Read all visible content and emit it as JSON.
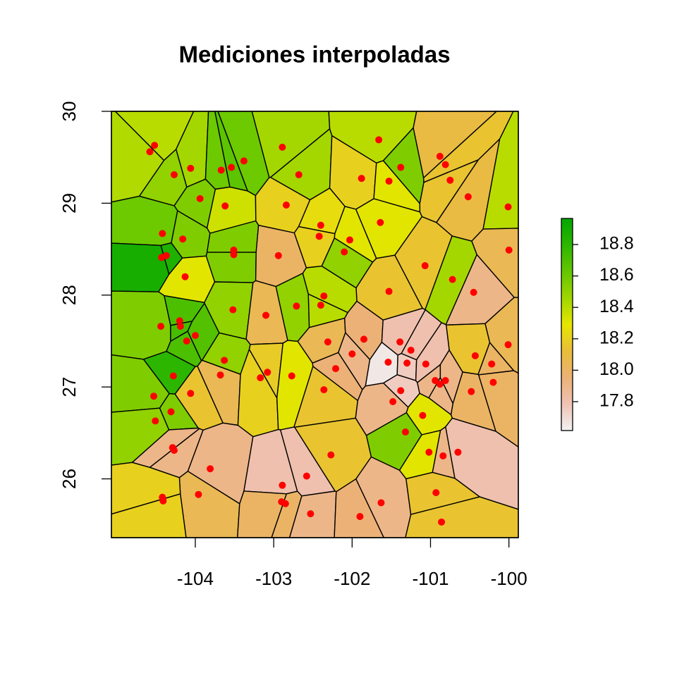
{
  "chart_data": {
    "type": "voronoi",
    "title": "Mediciones interpoladas",
    "xlim": [
      -105.07,
      -99.88
    ],
    "ylim": [
      25.36,
      30
    ],
    "xticks": [
      -104,
      -103,
      -102,
      -101,
      -100
    ],
    "yticks": [
      26,
      27,
      28,
      29,
      30
    ],
    "point_color": "#ff0000",
    "x": [
      -104.52,
      -104.58,
      -104.27,
      -104.06,
      -103.94,
      -103.67,
      -103.54,
      -103.38,
      -102.89,
      -102.68,
      -103.62,
      -102.84,
      -101.88,
      -101.66,
      -101.53,
      -101.38,
      -100.88,
      -100.81,
      -100.75,
      -100.52,
      -100.01,
      -104.42,
      -104.16,
      -104.37,
      -104.43,
      -104.13,
      -103.51,
      -103.51,
      -102.94,
      -102.4,
      -102.42,
      -102.03,
      -102.1,
      -101.64,
      -100.0,
      -101.07,
      -100.72,
      -101.53,
      -102.36,
      -102.4,
      -102.71,
      -103.52,
      -103.1,
      -104.44,
      -104.2,
      -104.19,
      -104.11,
      -104.0,
      -103.63,
      -103.68,
      -104.28,
      -104.53,
      -104.06,
      -104.31,
      -104.51,
      -103.17,
      -103.08,
      -102.77,
      -102.31,
      -101.85,
      -102.0,
      -102.21,
      -102.36,
      -101.54,
      -101.39,
      -101.3,
      -101.25,
      -101.38,
      -101.48,
      -101.06,
      -100.94,
      -100.88,
      -100.81,
      -101.1,
      -101.32,
      -100.45,
      -100.43,
      -100.22,
      -100.2,
      -100.01,
      -100.48,
      -101.02,
      -100.84,
      -100.65,
      -104.29,
      -104.27,
      -103.81,
      -103.96,
      -104.42,
      -104.41,
      -102.27,
      -102.89,
      -102.58,
      -102.9,
      -102.85,
      -102.53,
      -101.9,
      -101.63,
      -100.93,
      -100.86
    ],
    "y": [
      29.63,
      29.56,
      29.31,
      29.38,
      29.05,
      29.36,
      29.39,
      29.46,
      29.61,
      29.31,
      28.97,
      28.98,
      29.27,
      29.69,
      29.24,
      29.39,
      29.51,
      29.42,
      29.25,
      29.07,
      28.96,
      28.67,
      28.61,
      28.43,
      28.41,
      28.2,
      28.49,
      28.44,
      28.43,
      28.76,
      28.64,
      28.6,
      28.47,
      28.79,
      28.49,
      28.32,
      28.17,
      28.04,
      27.99,
      27.89,
      27.88,
      27.84,
      27.78,
      27.66,
      27.72,
      27.66,
      27.5,
      27.56,
      27.29,
      27.13,
      27.12,
      26.9,
      26.93,
      26.73,
      26.63,
      27.1,
      27.16,
      27.12,
      27.49,
      27.52,
      27.36,
      27.2,
      26.97,
      27.27,
      27.49,
      27.26,
      27.4,
      26.96,
      26.84,
      27.25,
      27.07,
      27.03,
      27.07,
      26.69,
      26.51,
      28.03,
      27.34,
      27.25,
      27.05,
      27.46,
      26.95,
      26.29,
      26.25,
      26.29,
      26.34,
      26.31,
      26.11,
      25.83,
      25.8,
      25.76,
      26.26,
      25.93,
      26.03,
      25.75,
      25.73,
      25.62,
      25.59,
      25.74,
      25.85,
      25.53
    ],
    "values": [
      18.4,
      18.42,
      18.5,
      18.45,
      18.55,
      18.6,
      18.65,
      18.6,
      18.45,
      18.45,
      18.35,
      18.2,
      18.2,
      18.4,
      18.3,
      18.55,
      18.1,
      18.15,
      18.15,
      18.1,
      18.4,
      18.6,
      18.55,
      18.85,
      18.88,
      18.3,
      18.55,
      18.55,
      18.0,
      18.25,
      18.2,
      18.3,
      18.5,
      18.3,
      18.05,
      18.15,
      18.45,
      18.15,
      18.4,
      18.4,
      18.5,
      18.5,
      18.05,
      18.55,
      18.7,
      18.72,
      18.7,
      18.68,
      18.5,
      18.05,
      18.8,
      18.55,
      18.15,
      18.55,
      18.5,
      18.2,
      18.18,
      18.3,
      18.05,
      17.95,
      17.9,
      17.95,
      18.15,
      17.65,
      17.8,
      17.75,
      17.8,
      17.75,
      17.9,
      17.8,
      17.9,
      17.9,
      17.9,
      18.3,
      18.55,
      17.9,
      18.15,
      18.0,
      18.0,
      18.05,
      18.0,
      18.3,
      17.9,
      17.8,
      17.9,
      17.9,
      17.9,
      18.05,
      18.2,
      18.2,
      18.15,
      17.8,
      17.8,
      18.0,
      18.0,
      17.9,
      17.95,
      17.9,
      18.15,
      18.15
    ],
    "colorbar": {
      "lim": [
        17.616,
        18.966
      ],
      "ticks": [
        17.8,
        {
          "value": 18,
          "label": "18.0"
        },
        18.2,
        18.4,
        18.6,
        18.8
      ],
      "colors": [
        "#F2F2F2",
        "#EFC2B3",
        "#ECB176",
        "#E9BD3A",
        "#E6E600",
        "#A0D600",
        "#63C600",
        "#2DB600",
        "#00A600"
      ]
    }
  }
}
